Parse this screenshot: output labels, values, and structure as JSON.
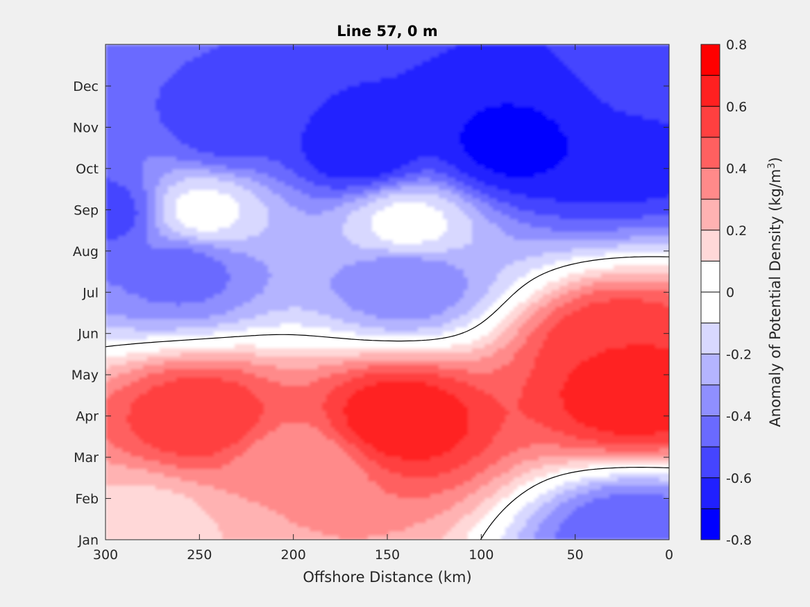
{
  "chart_data": {
    "type": "heatmap",
    "subtype": "filled-contour",
    "title": "Line 57, 0 m",
    "xlabel": "Offshore Distance (km)",
    "x_reversed": true,
    "xlim": [
      0,
      300
    ],
    "x_ticks": [
      300,
      250,
      200,
      150,
      100,
      50,
      0
    ],
    "y_ticks": [
      "Jan",
      "Feb",
      "Mar",
      "Apr",
      "May",
      "Jun",
      "Jul",
      "Aug",
      "Sep",
      "Oct",
      "Nov",
      "Dec"
    ],
    "colorbar": {
      "label_prefix": "Anomaly of Potential Density (kg/m",
      "label_sup": "3",
      "label_suffix": ")",
      "range": [
        -0.8,
        0.8
      ],
      "step": 0.1,
      "tick_labels": [
        "0.8",
        "0.6",
        "0.4",
        "0.2",
        "0",
        "-0.2",
        "-0.4",
        "-0.6",
        "-0.8"
      ],
      "levels": [
        "#ff0000",
        "#ff2020",
        "#ff4040",
        "#ff6060",
        "#ff8a8a",
        "#ffb2b2",
        "#ffd8d8",
        "#ffffff",
        "#ffffff",
        "#d8d8ff",
        "#b4b4ff",
        "#8f8fff",
        "#6a6aff",
        "#4545ff",
        "#2020ff",
        "#0000ff"
      ]
    },
    "zero_contour": true,
    "features": [
      {
        "x_km": 20,
        "month": 3.6,
        "value": 0.7
      },
      {
        "x_km": 145,
        "month": 3.0,
        "value": 0.7
      },
      {
        "x_km": 250,
        "month": 3.0,
        "value": 0.6
      },
      {
        "x_km": 30,
        "month": 4.8,
        "value": 0.6
      },
      {
        "x_km": 200,
        "month": 1.8,
        "value": 0.3
      },
      {
        "x_km": 280,
        "month": 0.4,
        "value": 0.15
      },
      {
        "x_km": 250,
        "month": 8.0,
        "value": -0.05
      },
      {
        "x_km": 140,
        "month": 7.7,
        "value": -0.05
      },
      {
        "x_km": 142,
        "month": 6.3,
        "value": -0.4
      },
      {
        "x_km": 260,
        "month": 6.6,
        "value": -0.45
      },
      {
        "x_km": 60,
        "month": 9.9,
        "value": -0.7
      },
      {
        "x_km": 85,
        "month": 9.6,
        "value": -0.75
      },
      {
        "x_km": 165,
        "month": 9.5,
        "value": -0.7
      },
      {
        "x_km": 235,
        "month": 10.0,
        "value": -0.55
      },
      {
        "x_km": 25,
        "month": 9.6,
        "value": -0.7
      },
      {
        "x_km": 300,
        "month": 8.0,
        "value": -0.55
      },
      {
        "x_km": 10,
        "month": 11.0,
        "value": -0.5
      },
      {
        "x_km": 20,
        "month": 0.2,
        "value": -0.5
      }
    ]
  }
}
